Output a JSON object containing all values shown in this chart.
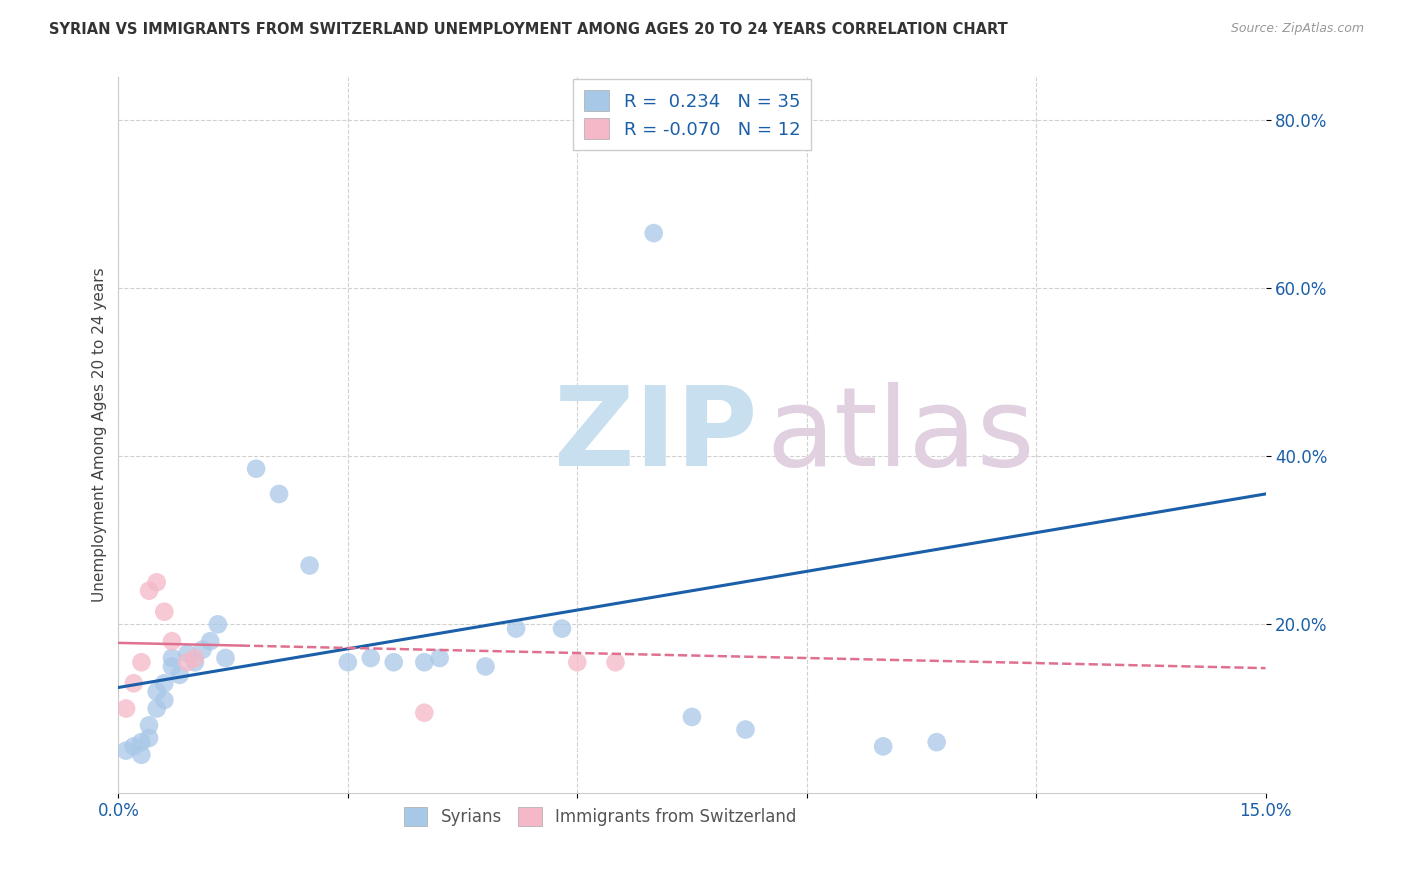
{
  "title": "SYRIAN VS IMMIGRANTS FROM SWITZERLAND UNEMPLOYMENT AMONG AGES 20 TO 24 YEARS CORRELATION CHART",
  "source": "Source: ZipAtlas.com",
  "ylabel": "Unemployment Among Ages 20 to 24 years",
  "xlim": [
    0.0,
    0.15
  ],
  "ylim": [
    0.0,
    0.85
  ],
  "blue_R": 0.234,
  "blue_N": 35,
  "pink_R": -0.07,
  "pink_N": 12,
  "blue_color": "#a8c8e8",
  "pink_color": "#f4b8c8",
  "blue_line_color": "#1a5fa8",
  "pink_line_color": "#e07090",
  "syrians_label": "Syrians",
  "swiss_label": "Immigrants from Switzerland",
  "blue_trend_x": [
    0.0,
    0.15
  ],
  "blue_trend_y": [
    0.125,
    0.355
  ],
  "pink_trend_x": [
    0.0,
    0.15
  ],
  "pink_trend_y": [
    0.178,
    0.148
  ],
  "blue_points": [
    [
      0.001,
      0.05
    ],
    [
      0.002,
      0.055
    ],
    [
      0.003,
      0.06
    ],
    [
      0.003,
      0.045
    ],
    [
      0.004,
      0.065
    ],
    [
      0.004,
      0.08
    ],
    [
      0.005,
      0.1
    ],
    [
      0.005,
      0.12
    ],
    [
      0.006,
      0.11
    ],
    [
      0.006,
      0.13
    ],
    [
      0.007,
      0.15
    ],
    [
      0.007,
      0.16
    ],
    [
      0.008,
      0.14
    ],
    [
      0.009,
      0.165
    ],
    [
      0.01,
      0.155
    ],
    [
      0.011,
      0.17
    ],
    [
      0.012,
      0.18
    ],
    [
      0.013,
      0.2
    ],
    [
      0.014,
      0.16
    ],
    [
      0.018,
      0.385
    ],
    [
      0.021,
      0.355
    ],
    [
      0.025,
      0.27
    ],
    [
      0.03,
      0.155
    ],
    [
      0.033,
      0.16
    ],
    [
      0.036,
      0.155
    ],
    [
      0.04,
      0.155
    ],
    [
      0.042,
      0.16
    ],
    [
      0.048,
      0.15
    ],
    [
      0.052,
      0.195
    ],
    [
      0.058,
      0.195
    ],
    [
      0.07,
      0.665
    ],
    [
      0.075,
      0.09
    ],
    [
      0.082,
      0.075
    ],
    [
      0.1,
      0.055
    ],
    [
      0.107,
      0.06
    ]
  ],
  "pink_points": [
    [
      0.001,
      0.1
    ],
    [
      0.002,
      0.13
    ],
    [
      0.003,
      0.155
    ],
    [
      0.004,
      0.24
    ],
    [
      0.005,
      0.25
    ],
    [
      0.006,
      0.215
    ],
    [
      0.007,
      0.18
    ],
    [
      0.009,
      0.155
    ],
    [
      0.01,
      0.16
    ],
    [
      0.04,
      0.095
    ],
    [
      0.06,
      0.155
    ],
    [
      0.065,
      0.155
    ]
  ]
}
